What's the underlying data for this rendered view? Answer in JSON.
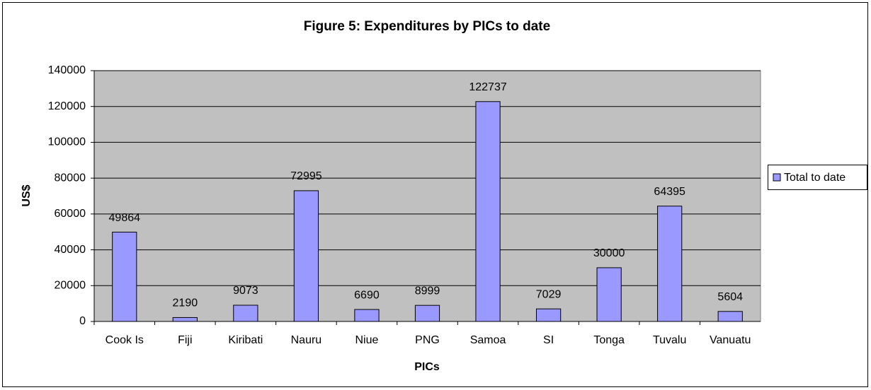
{
  "chart_data": {
    "type": "bar",
    "title": "Figure 5: Expenditures by PICs to date",
    "x_label": "PICs",
    "y_label": "US$",
    "categories": [
      "Cook Is",
      "Fiji",
      "Kiribati",
      "Nauru",
      "Niue",
      "PNG",
      "Samoa",
      "SI",
      "Tonga",
      "Tuvalu",
      "Vanuatu"
    ],
    "series": [
      {
        "name": "Total to date",
        "color": "#9999ff",
        "values": [
          49864,
          2190,
          9073,
          72995,
          6690,
          8999,
          122737,
          7029,
          30000,
          64395,
          5604
        ]
      }
    ],
    "ylim": [
      0,
      140000
    ],
    "yticks": [
      0,
      20000,
      40000,
      60000,
      80000,
      100000,
      120000,
      140000
    ],
    "grid": true,
    "legend": "right"
  }
}
